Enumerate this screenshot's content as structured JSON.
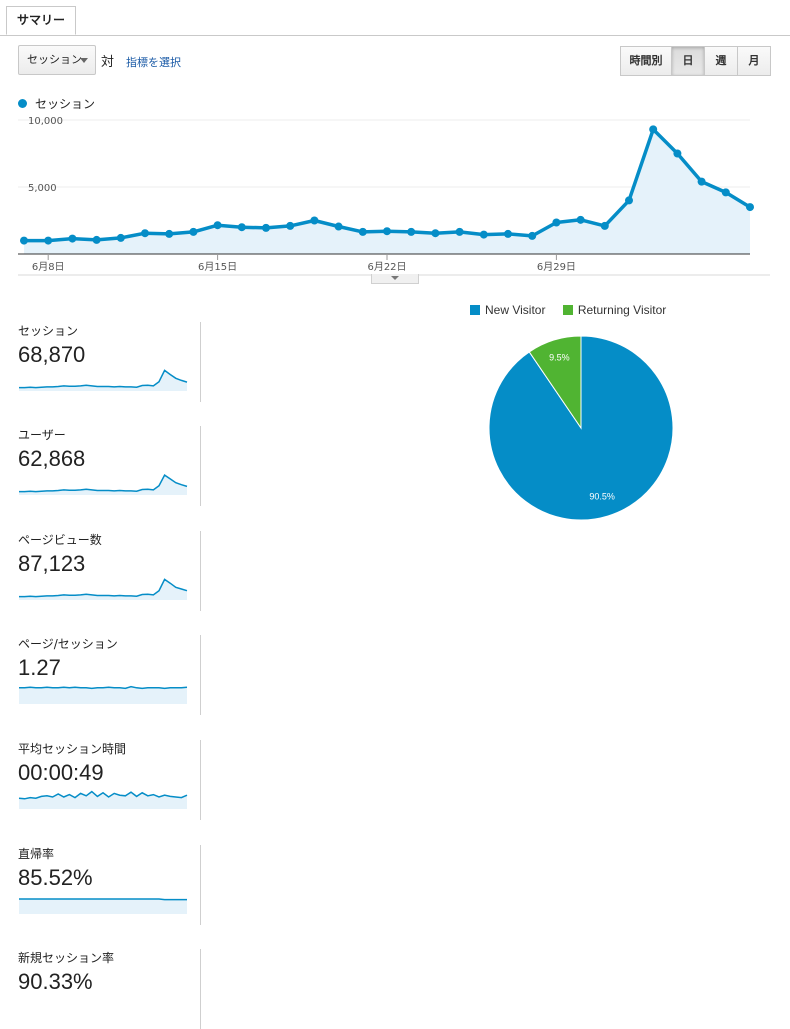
{
  "tab": {
    "label": "サマリー"
  },
  "controls": {
    "metric_select": "セッション",
    "vs_label": "対",
    "select_metric_link": "指標を選択",
    "periods": [
      "時間別",
      "日",
      "週",
      "月"
    ],
    "active_period": "日"
  },
  "colors": {
    "accent": "#058dc7",
    "fill": "#e5f2fa",
    "returning": "#50b432"
  },
  "chart_data": [
    {
      "type": "area",
      "series": [
        {
          "name": "セッション",
          "values": [
            1000,
            1000,
            1150,
            1050,
            1200,
            1550,
            1500,
            1650,
            2150,
            2000,
            1950,
            2100,
            2500,
            2050,
            1650,
            1700,
            1650,
            1550,
            1650,
            1450,
            1500,
            1350,
            2350,
            2550,
            2100,
            4000,
            9300,
            7500,
            5400,
            4600,
            3500
          ]
        }
      ],
      "x_tick_labels": [
        "6月8日",
        "6月15日",
        "6月22日",
        "6月29日"
      ],
      "y_tick_labels": [
        "10,000",
        "5,000"
      ],
      "ylim": [
        0,
        10000
      ],
      "grid": true,
      "legend": "top-left"
    },
    {
      "type": "pie",
      "categories": [
        "New Visitor",
        "Returning Visitor"
      ],
      "values": [
        90.5,
        9.5
      ],
      "labels": [
        "90.5%",
        "9.5%"
      ],
      "colors": [
        "#058dc7",
        "#50b432"
      ],
      "legend": "top"
    }
  ],
  "metrics": [
    {
      "label": "セッション",
      "value": "68,870",
      "spark": [
        10,
        10,
        11,
        10,
        11,
        12,
        12,
        13,
        15,
        14,
        14,
        15,
        17,
        15,
        13,
        13,
        13,
        12,
        13,
        12,
        12,
        11,
        16,
        17,
        15,
        27,
        60,
        48,
        37,
        31,
        26
      ],
      "smin": 0,
      "smax": 70
    },
    {
      "label": "ユーザー",
      "value": "62,868",
      "spark": [
        10,
        10,
        11,
        10,
        11,
        12,
        12,
        13,
        15,
        14,
        14,
        15,
        17,
        15,
        13,
        13,
        13,
        12,
        13,
        12,
        12,
        11,
        16,
        17,
        15,
        27,
        58,
        47,
        36,
        30,
        25
      ],
      "smin": 0,
      "smax": 70
    },
    {
      "label": "ページビュー数",
      "value": "87,123",
      "spark": [
        10,
        10,
        11,
        10,
        11,
        12,
        12,
        13,
        15,
        14,
        14,
        15,
        17,
        15,
        13,
        13,
        13,
        12,
        13,
        12,
        12,
        11,
        16,
        17,
        15,
        27,
        60,
        49,
        37,
        32,
        27
      ],
      "smin": 0,
      "smax": 70
    },
    {
      "label": "ページ/セッション",
      "value": "1.27",
      "spark": [
        27,
        27,
        28,
        27,
        27,
        28,
        27,
        27,
        28,
        27,
        28,
        27,
        27,
        26,
        27,
        27,
        28,
        27,
        27,
        26,
        29,
        27,
        26,
        27,
        27,
        27,
        26,
        27,
        27,
        27,
        28
      ],
      "smin": 0,
      "smax": 40
    },
    {
      "label": "平均セッション時間",
      "value": "00:00:49",
      "spark": [
        18,
        17,
        19,
        18,
        21,
        22,
        20,
        25,
        20,
        24,
        19,
        26,
        22,
        29,
        21,
        27,
        20,
        26,
        23,
        22,
        28,
        21,
        27,
        22,
        24,
        20,
        23,
        21,
        20,
        19,
        23
      ],
      "smin": 0,
      "smax": 40
    },
    {
      "label": "直帰率",
      "value": "85.52%",
      "spark": [
        25,
        25,
        25,
        25,
        25,
        25,
        25,
        25,
        25,
        25,
        25,
        25,
        25,
        25,
        25,
        25,
        25,
        25,
        25,
        25,
        25,
        25,
        25,
        25,
        25,
        25,
        24,
        24,
        24,
        24,
        24
      ],
      "smin": 0,
      "smax": 40
    },
    {
      "label": "新規セッション率",
      "value": "90.33%",
      "spark": [],
      "smin": 0,
      "smax": 40
    }
  ]
}
